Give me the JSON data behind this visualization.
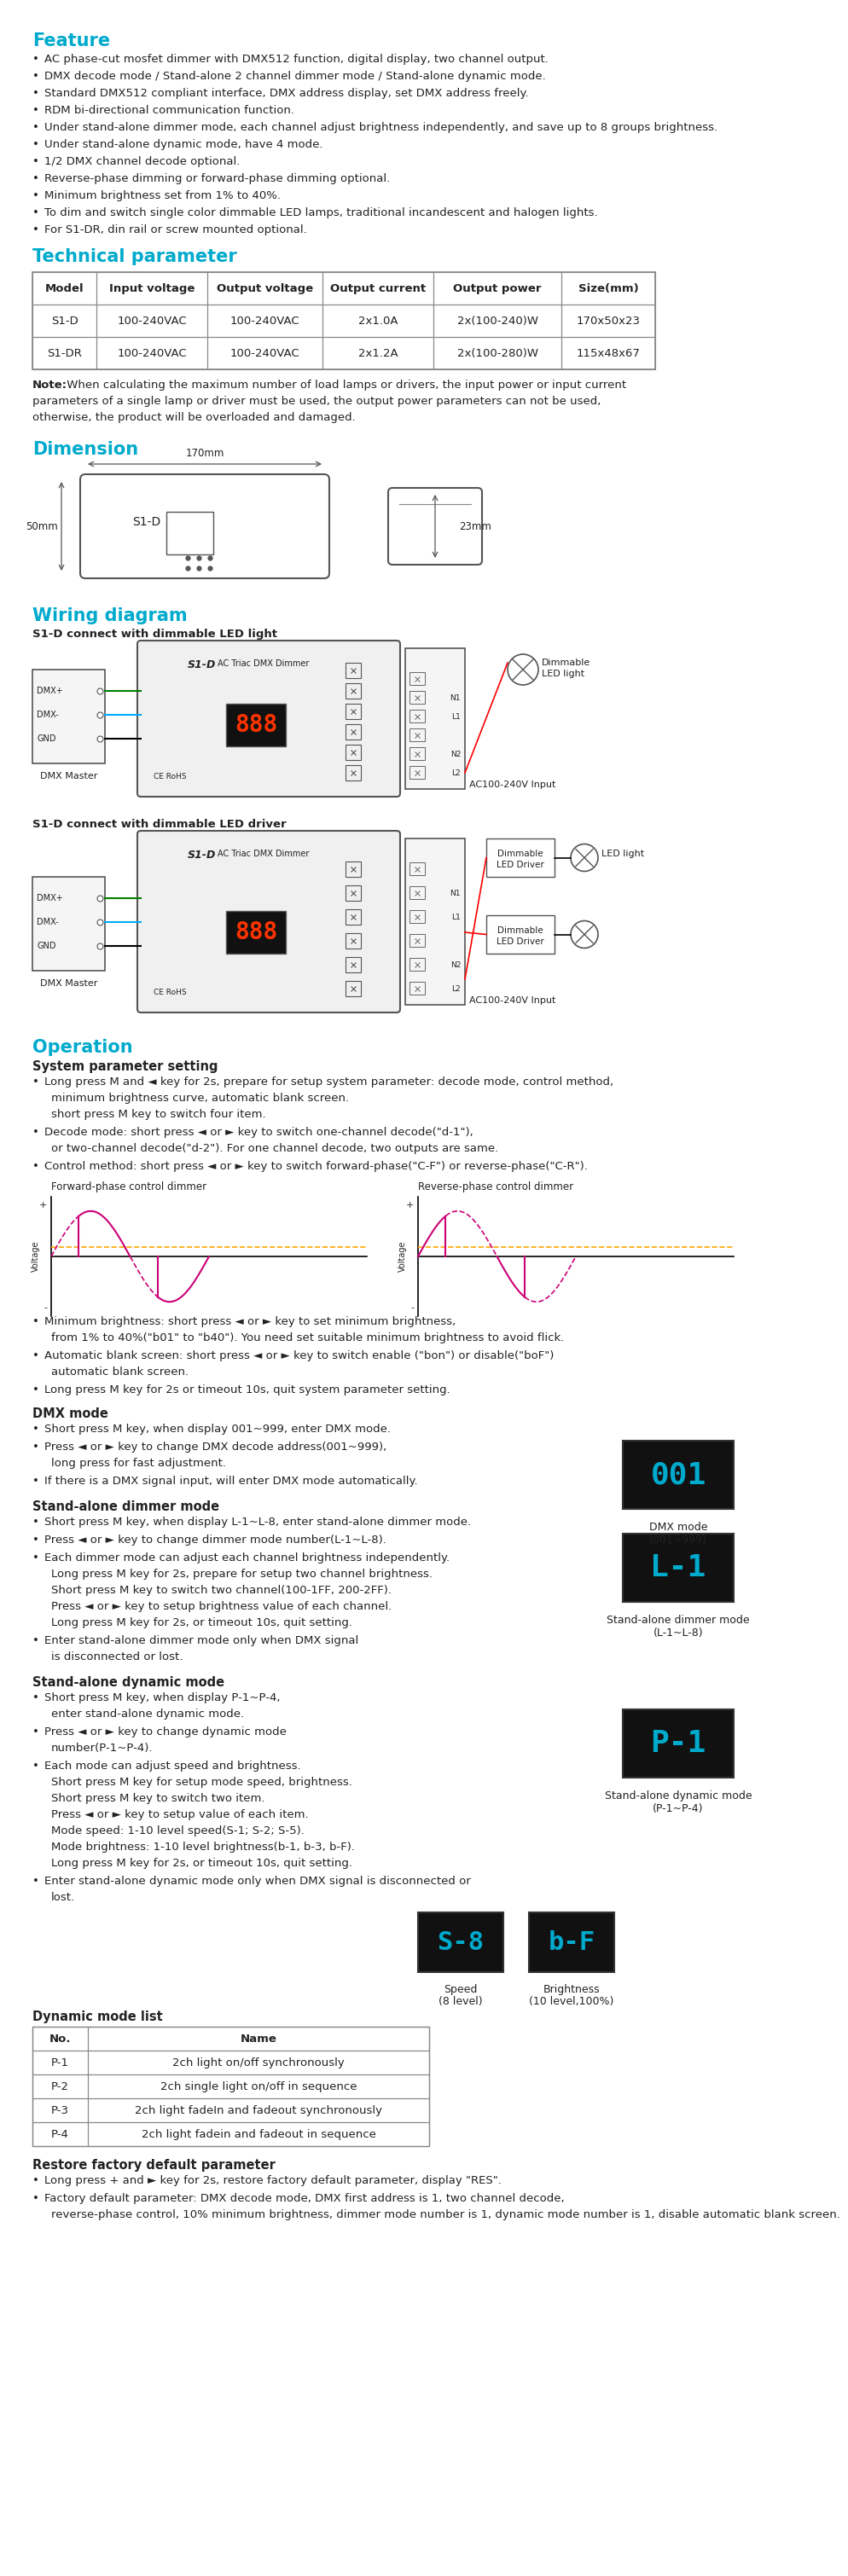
{
  "title_color": "#00aacc",
  "text_color": "#222222",
  "bg_color": "#ffffff",
  "section_feature": "Feature",
  "feature_bullets": [
    "AC phase-cut mosfet dimmer with DMX512 function, digital display, two channel output.",
    "DMX decode mode / Stand-alone 2 channel dimmer mode / Stand-alone dynamic mode.",
    "Standard DMX512 compliant interface, DMX address display, set DMX address freely.",
    "RDM bi-directional communication function.",
    "Under stand-alone dimmer mode, each channel adjust brightness independently, and save up to 8 groups brightness.",
    "Under stand-alone dynamic mode, have 4 mode.",
    "1/2 DMX channel decode optional.",
    "Reverse-phase dimming or forward-phase dimming optional.",
    "Minimum brightness set from 1% to 40%.",
    "To dim and switch single color dimmable LED lamps, traditional incandescent and halogen lights.",
    "For S1-DR, din rail or screw mounted optional."
  ],
  "section_tech": "Technical parameter",
  "table_headers": [
    "Model",
    "Input voltage",
    "Output voltage",
    "Output current",
    "Output power",
    "Size(mm)"
  ],
  "table_rows": [
    [
      "S1-D",
      "100-240VAC",
      "100-240VAC",
      "2x1.0A",
      "2x(100-240)W",
      "170x50x23"
    ],
    [
      "S1-DR",
      "100-240VAC",
      "100-240VAC",
      "2x1.2A",
      "2x(100-280)W",
      "115x48x67"
    ]
  ],
  "note_bold": "Note:",
  "note_rest": " When calculating the maximum number of load lamps or drivers, the input power or input current",
  "note_line2": "parameters of a single lamp or driver must be used, the output power parameters can not be used,",
  "note_line3": "otherwise, the product will be overloaded and damaged.",
  "section_dimension": "Dimension",
  "section_wiring": "Wiring diagram",
  "wiring_sub1": "S1-D connect with dimmable LED light",
  "wiring_sub2": "S1-D connect with dimmable LED driver",
  "section_operation": "Operation",
  "op_sub1": "System parameter setting",
  "op_b1_line1": "Long press M and ◄ key for 2s, prepare for setup system parameter: decode mode, control method,",
  "op_b1_line2": "minimum brightness curve, automatic blank screen.",
  "op_b1_line3": "short press M key to switch four item.",
  "op_b2_line1": "Decode mode: short press ◄ or ► key to switch one-channel decode(\"d-1\"),",
  "op_b2_line2": "or two-channel decode(\"d-2\"). For one channel decode, two outputs are same.",
  "op_b3_line1": "Control method: short press ◄ or ► key to switch forward-phase(\"C-F\") or reverse-phase(\"C-R\").",
  "phase_label1": "Forward-phase control dimmer",
  "phase_label2": "Reverse-phase control dimmer",
  "op_b4_line1": "Minimum brightness: short press ◄ or ► key to set minimum brightness,",
  "op_b4_line2": "from 1% to 40%(\"b01\" to \"b40\"). You need set suitable minimum brightness to avoid flick.",
  "op_b5_line1": "Automatic blank screen: short press ◄ or ► key to switch enable (\"bon\") or disable(\"boF\")",
  "op_b5_line2": "automatic blank screen.",
  "op_b6_line1": "Long press M key for 2s or timeout 10s, quit system parameter setting.",
  "op_sub2": "DMX mode",
  "op_c1": "Short press M key, when display 001~999, enter DMX mode.",
  "op_c2_line1": "Press ◄ or ► key to change DMX decode address(001~999),",
  "op_c2_line2": "long press for fast adjustment.",
  "op_c3": "If there is a DMX signal input, will enter DMX mode automatically.",
  "dmx_display": "001",
  "dmx_label1": "DMX mode",
  "dmx_label2": "(001~999)",
  "op_sub3": "Stand-alone dimmer mode",
  "op_d1": "Short press M key, when display L-1~L-8, enter stand-alone dimmer mode.",
  "op_d2": "Press ◄ or ► key to change dimmer mode number(L-1~L-8).",
  "op_d3": "Each dimmer mode can adjust each channel brightness independently.",
  "op_d3_line2": "Long press M key for 2s, prepare for setup two channel brightness.",
  "op_d3_line3": "Short press M key to switch two channel(100-1FF, 200-2FF).",
  "op_d3_line4": "Press ◄ or ► key to setup brightness value of each channel.",
  "op_d3_line5": "Long press M key for 2s, or timeout 10s, quit setting.",
  "op_d4_line1": "Enter stand-alone dimmer mode only when DMX signal",
  "op_d4_line2": "is disconnected or lost.",
  "dimmer_display": "L-1",
  "dimmer_label1": "Stand-alone dimmer mode",
  "dimmer_label2": "(L-1~L-8)",
  "op_sub4": "Stand-alone dynamic mode",
  "op_e1_line1": "Short press M key, when display P-1~P-4,",
  "op_e1_line2": "enter stand-alone dynamic mode.",
  "op_e2_line1": "Press ◄ or ► key to change dynamic mode",
  "op_e2_line2": "number(P-1~P-4).",
  "op_e3": "Each mode can adjust speed and brightness.",
  "dynamic_display": "P-1",
  "dynamic_label1": "Stand-alone dynamic mode",
  "dynamic_label2": "(P-1~P-4)",
  "op_e3_line2": "Short press M key for setup mode speed, brightness.",
  "op_e3_line3": "Short press M key to switch two item.",
  "op_e3_line4": "Press ◄ or ► key to setup value of each item.",
  "op_e3_line5": "Mode speed: 1-10 level speed(S-1; S-2; S-5).",
  "op_e3_line6": "Mode brightness: 1-10 level brightness(b-1, b-3, b-F).",
  "op_e3_line7": "Long press M key for 2s, or timeout 10s, quit setting.",
  "op_e4_line1": "Enter stand-alone dynamic mode only when DMX signal is disconnected or",
  "op_e4_line2": "lost.",
  "speed_display": "S-8",
  "speed_label1": "Speed",
  "speed_label2": "(8 level)",
  "brightness_display": "b-F",
  "brightness_label1": "Brightness",
  "brightness_label2": "(10 level,100%)",
  "op_sub5": "Dynamic mode list",
  "dynamic_table_headers": [
    "No.",
    "Name"
  ],
  "dynamic_table_rows": [
    [
      "P-1",
      "2ch light on/off synchronously"
    ],
    [
      "P-2",
      "2ch single light on/off in sequence"
    ],
    [
      "P-3",
      "2ch light fadeIn and fadeout synchronously"
    ],
    [
      "P-4",
      "2ch light fadein and fadeout in sequence"
    ]
  ],
  "op_sub6": "Restore factory default parameter",
  "op_f1_line1": "Long press + and ► key for 2s, restore factory default parameter, display \"RES\".",
  "op_f2_line1": "Factory default parameter: DMX decode mode, DMX first address is 1, two channel decode,",
  "op_f2_line2": "reverse-phase control, 10% minimum brightness, dimmer mode number is 1, dynamic mode number is 1, disable automatic blank screen."
}
